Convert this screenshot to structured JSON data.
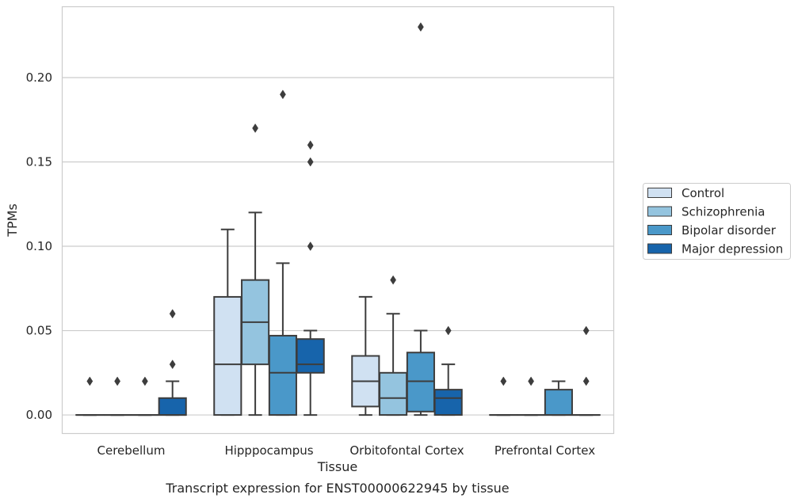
{
  "chart_data": {
    "type": "box",
    "caption": "Transcript expression for ENST00000622945 by tissue",
    "xlabel": "Tissue",
    "ylabel": "TPMs",
    "ylim": [
      -0.011,
      0.242
    ],
    "yticks": [
      "0.00",
      "0.05",
      "0.10",
      "0.15",
      "0.20"
    ],
    "grid": true,
    "legend_position": "right",
    "categories": [
      "Cerebellum",
      "Hipppocampus",
      "Orbitofontal Cortex",
      "Prefrontal Cortex"
    ],
    "colors": {
      "series": [
        "#d0e1f2",
        "#94c4df",
        "#4a98c9",
        "#1764ab"
      ],
      "edge": "#3d3d3d",
      "grid": "#cccccc",
      "frame": "#cccccc"
    },
    "series": [
      {
        "name": "Control",
        "boxes": [
          {
            "q1": 0,
            "median": 0,
            "q3": 0,
            "whisker_low": 0,
            "whisker_high": 0,
            "outliers": [
              0.02
            ]
          },
          {
            "q1": 0,
            "median": 0.03,
            "q3": 0.07,
            "whisker_low": 0,
            "whisker_high": 0.11,
            "outliers": []
          },
          {
            "q1": 0.005,
            "median": 0.02,
            "q3": 0.035,
            "whisker_low": 0,
            "whisker_high": 0.07,
            "outliers": []
          },
          {
            "q1": 0,
            "median": 0,
            "q3": 0,
            "whisker_low": 0,
            "whisker_high": 0,
            "outliers": [
              0.02
            ]
          }
        ]
      },
      {
        "name": "Schizophrenia",
        "boxes": [
          {
            "q1": 0,
            "median": 0,
            "q3": 0,
            "whisker_low": 0,
            "whisker_high": 0,
            "outliers": [
              0.02
            ]
          },
          {
            "q1": 0.03,
            "median": 0.055,
            "q3": 0.08,
            "whisker_low": 0,
            "whisker_high": 0.12,
            "outliers": [
              0.17
            ]
          },
          {
            "q1": 0,
            "median": 0.01,
            "q3": 0.025,
            "whisker_low": 0,
            "whisker_high": 0.06,
            "outliers": [
              0.08
            ]
          },
          {
            "q1": 0,
            "median": 0,
            "q3": 0,
            "whisker_low": 0,
            "whisker_high": 0,
            "outliers": [
              0.02
            ]
          }
        ]
      },
      {
        "name": "Bipolar disorder",
        "boxes": [
          {
            "q1": 0,
            "median": 0,
            "q3": 0,
            "whisker_low": 0,
            "whisker_high": 0,
            "outliers": [
              0.02
            ]
          },
          {
            "q1": 0,
            "median": 0.025,
            "q3": 0.047,
            "whisker_low": 0,
            "whisker_high": 0.09,
            "outliers": [
              0.19
            ]
          },
          {
            "q1": 0.002,
            "median": 0.02,
            "q3": 0.037,
            "whisker_low": 0,
            "whisker_high": 0.05,
            "outliers": [
              0.23
            ]
          },
          {
            "q1": 0,
            "median": 0,
            "q3": 0.015,
            "whisker_low": 0,
            "whisker_high": 0.02,
            "outliers": []
          }
        ]
      },
      {
        "name": "Major depression",
        "boxes": [
          {
            "q1": 0,
            "median": 0,
            "q3": 0.01,
            "whisker_low": 0,
            "whisker_high": 0.02,
            "outliers": [
              0.03,
              0.06
            ]
          },
          {
            "q1": 0.025,
            "median": 0.03,
            "q3": 0.045,
            "whisker_low": 0,
            "whisker_high": 0.05,
            "outliers": [
              0.1,
              0.15,
              0.16
            ]
          },
          {
            "q1": 0,
            "median": 0.01,
            "q3": 0.015,
            "whisker_low": 0,
            "whisker_high": 0.03,
            "outliers": [
              0.05
            ]
          },
          {
            "q1": 0,
            "median": 0,
            "q3": 0,
            "whisker_low": 0,
            "whisker_high": 0,
            "outliers": [
              0.02,
              0.05
            ]
          }
        ]
      }
    ]
  }
}
